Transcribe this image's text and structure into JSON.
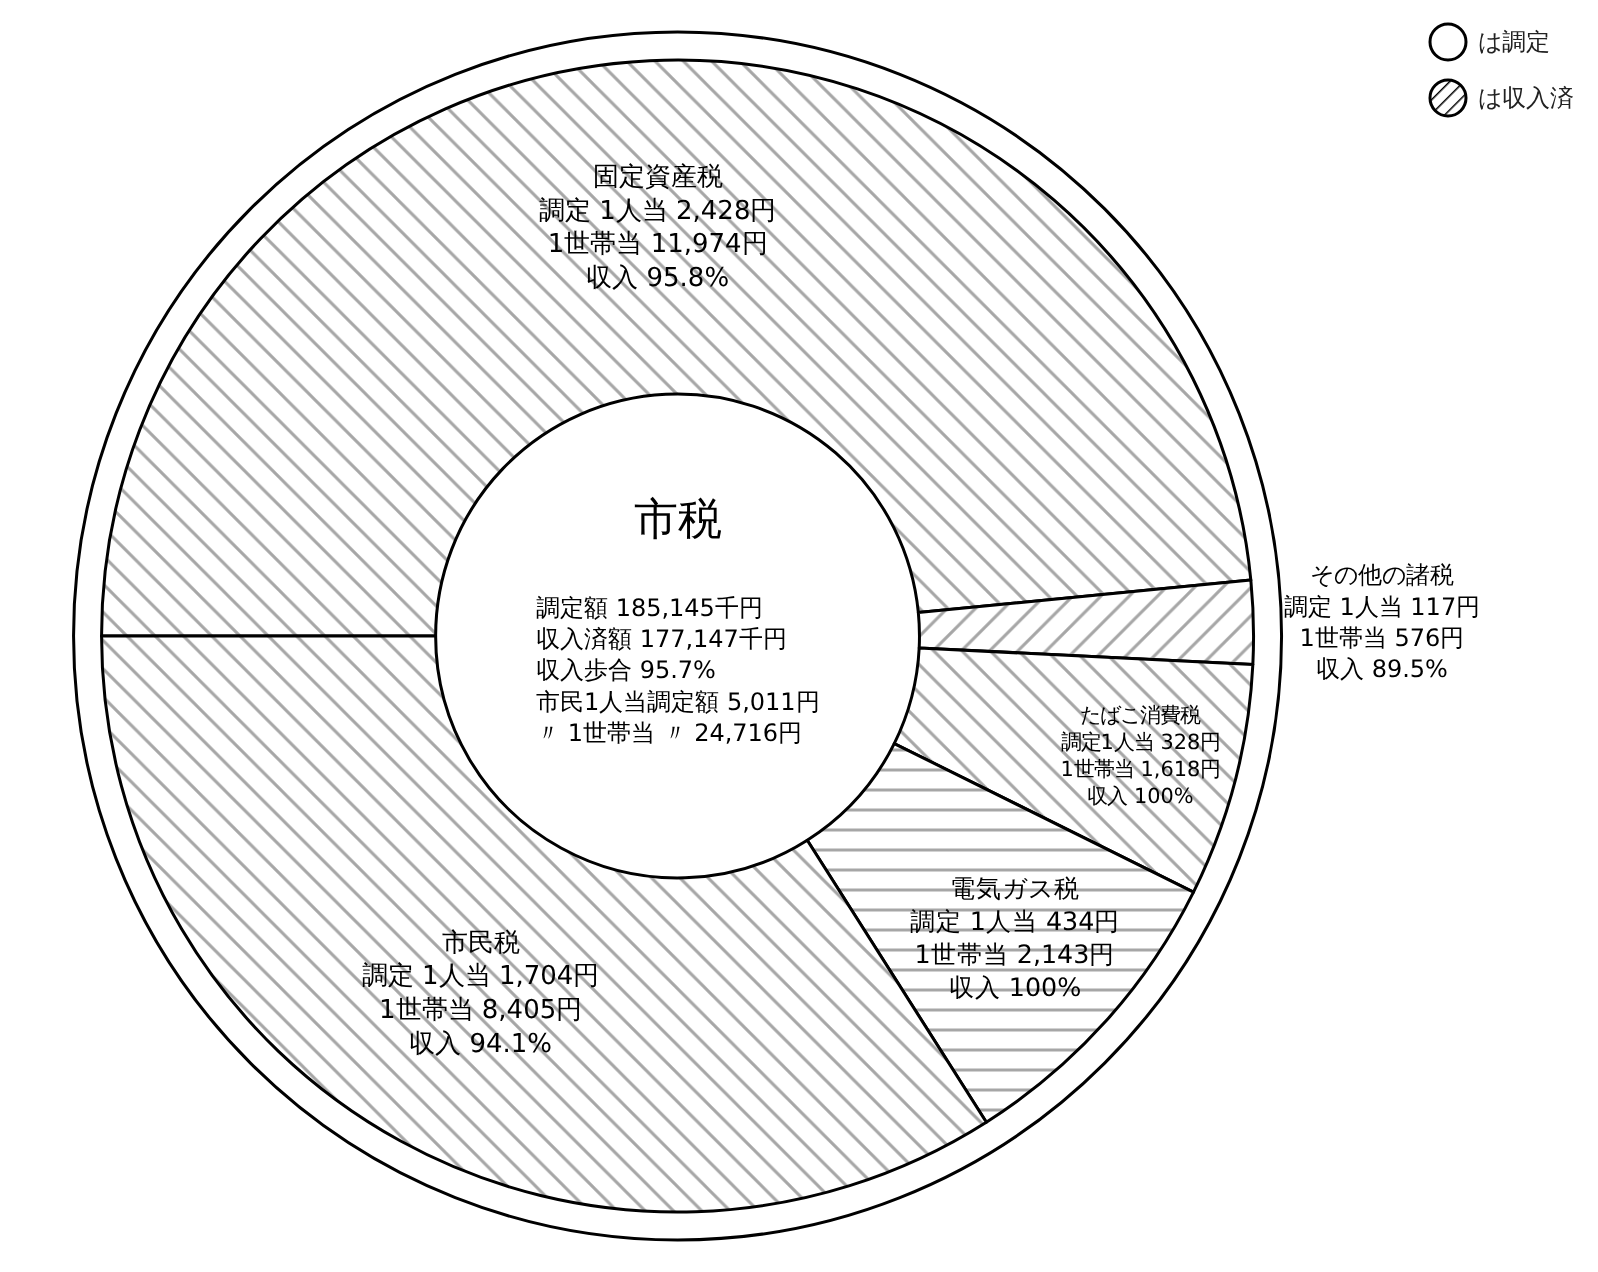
{
  "chart_data": {
    "type": "donut",
    "title": "市税",
    "categories": [
      "固定資産税",
      "その他の諸税",
      "たばこ消費税",
      "電気ガス税",
      "市民税"
    ],
    "values": [
      2428,
      117,
      328,
      434,
      1704
    ],
    "value_labels": [
      "調定 1人当 2,428円1世帯当 11,974円収入 95.8%",
      "調定 1人当 117円1世帯当 576円収入 89.5%",
      "調定1人当 328円1世帯当 1,618円収入 100%",
      "調定 1人当 434円1世帯当 2,143円収入 100%",
      "調定 1人当 1,704円1世帯当 8,405円収入 94.1%"
    ],
    "annotations": [
      "調定額 185,145千円収入済額 177,147千円収入歩合 95.7%市民1人当調定額 5,011円〃 1世帯当 〃 24,716円",
      "は調定",
      "は収入済"
    ]
  }
}
